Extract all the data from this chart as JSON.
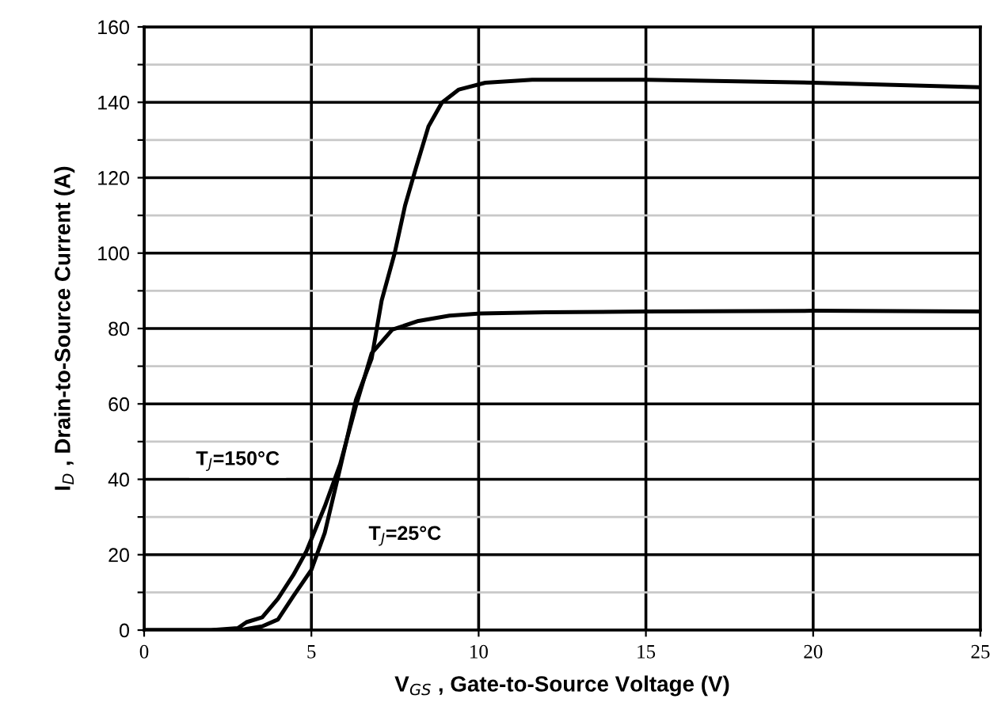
{
  "chart_data": {
    "type": "line",
    "xlabel": "V$_{GS}$ , Gate-to-Source Voltage (V)",
    "ylabel": "I$_{D}$ , Drain-to-Source Current (A)",
    "xlim": [
      0,
      25
    ],
    "ylim": [
      0,
      160
    ],
    "xticks": [
      0,
      5,
      10,
      15,
      20,
      25
    ],
    "yticks": [
      0,
      {
        "value": 10,
        "label": null
      },
      20,
      {
        "value": 30,
        "label": null
      },
      40,
      {
        "value": 50,
        "label": null
      },
      60,
      {
        "value": 70,
        "label": null
      },
      80,
      {
        "value": 90,
        "label": null
      },
      100,
      {
        "value": 110,
        "label": null
      },
      120,
      {
        "value": 130,
        "label": null
      },
      140,
      {
        "value": 150,
        "label": null
      },
      160
    ],
    "grid": true,
    "marker": "none",
    "line_style": "solid",
    "series": [
      {
        "color": "#000000",
        "x": [
          0,
          1,
          2,
          2.8,
          3.06,
          3.53,
          4.0,
          4.46,
          4.85,
          5.4,
          5.86,
          6.33,
          6.8,
          7.42,
          8.2,
          9.13,
          10.06,
          12,
          15,
          20,
          25
        ],
        "values": [
          0,
          0,
          0,
          0.5,
          2.1,
          3.4,
          8.3,
          14.6,
          20.9,
          32.8,
          44,
          59.4,
          73.4,
          79.7,
          82,
          83.4,
          84,
          84.3,
          84.5,
          84.7,
          84.5
        ]
      },
      {
        "color": "#000000",
        "x": [
          0,
          1,
          2,
          3,
          3.53,
          4.0,
          4.46,
          5.0,
          5.4,
          5.86,
          6.33,
          6.8,
          7.1,
          7.49,
          7.8,
          8.12,
          8.5,
          8.9,
          9.41,
          10.2,
          11.6,
          15,
          20,
          25
        ],
        "values": [
          0,
          0,
          0,
          0.2,
          1,
          2.8,
          9,
          16,
          25.8,
          43,
          61,
          72,
          87.4,
          100,
          112.6,
          122.4,
          133.6,
          139.9,
          143.4,
          145.2,
          146,
          146,
          145.2,
          144
        ]
      }
    ],
    "annotations": [
      "T$_{J}$=150°C",
      "T$_{J}$=25°C"
    ]
  }
}
